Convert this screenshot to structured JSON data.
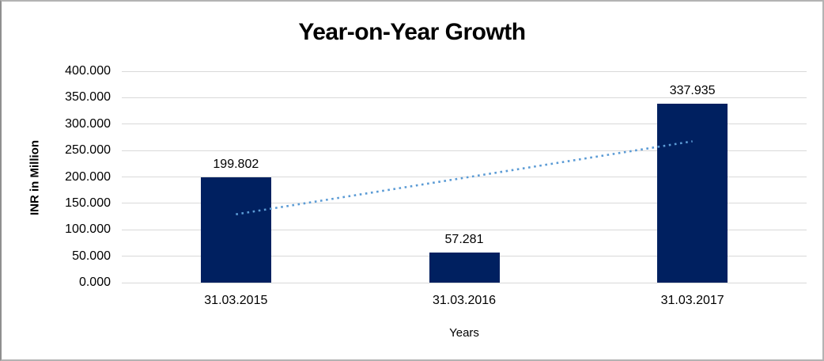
{
  "window": {
    "background": "#ffffff",
    "border_color": "#b3b3b3"
  },
  "chart_data": {
    "type": "bar",
    "title": "Year-on-Year Growth",
    "xlabel": "Years",
    "ylabel": "INR in Million",
    "categories": [
      "31.03.2015",
      "31.03.2016",
      "31.03.2017"
    ],
    "values": [
      199.802,
      57.281,
      337.935
    ],
    "data_labels": [
      "199.802",
      "57.281",
      "337.935"
    ],
    "ylim": [
      0,
      400
    ],
    "ytick_step": 50,
    "yticks": [
      {
        "value": 400,
        "label": "400.000"
      },
      {
        "value": 350,
        "label": "350.000"
      },
      {
        "value": 300,
        "label": "300.000"
      },
      {
        "value": 250,
        "label": "250.000"
      },
      {
        "value": 200,
        "label": "200.000"
      },
      {
        "value": 150,
        "label": "150.000"
      },
      {
        "value": 100,
        "label": "100.000"
      },
      {
        "value": 50,
        "label": "50.000"
      },
      {
        "value": 0,
        "label": "0.000"
      }
    ],
    "grid": "horizontal",
    "legend": "none",
    "colors": {
      "bar": "#002060",
      "trendline": "#5b9bd5",
      "gridline": "#d9d9d9",
      "text": "#000000"
    },
    "trendline": {
      "type": "linear",
      "style": "dotted",
      "start_value": 129.3,
      "end_value": 267.4
    }
  }
}
